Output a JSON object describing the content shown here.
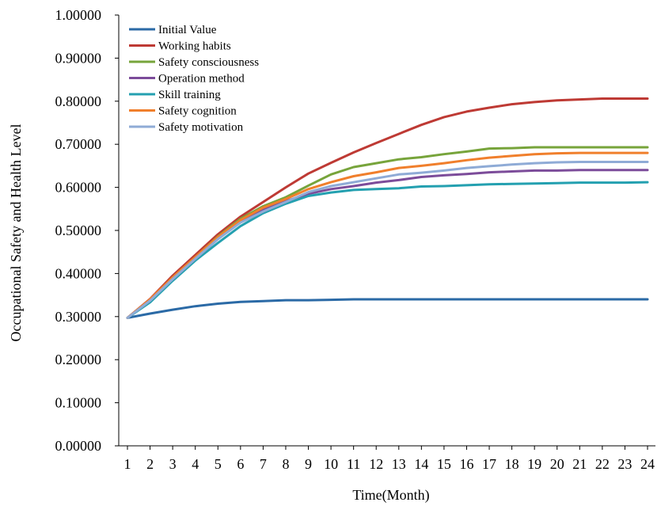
{
  "chart_data": {
    "type": "line",
    "title": "",
    "xlabel": "Time(Month)",
    "ylabel": "Occupational Safety and  Health Level",
    "x": [
      1,
      2,
      3,
      4,
      5,
      6,
      7,
      8,
      9,
      10,
      11,
      12,
      13,
      14,
      15,
      16,
      17,
      18,
      19,
      20,
      21,
      22,
      23,
      24
    ],
    "ylim": [
      0,
      1
    ],
    "yticks": [
      "0.00000",
      "0.10000",
      "0.20000",
      "0.30000",
      "0.40000",
      "0.50000",
      "0.60000",
      "0.70000",
      "0.80000",
      "0.90000",
      "1.00000"
    ],
    "grid": false,
    "legend_position": "top-left",
    "series": [
      {
        "name": "Initial Value",
        "color": "#2b6aa6",
        "values": [
          0.297,
          0.307,
          0.316,
          0.324,
          0.33,
          0.334,
          0.336,
          0.338,
          0.338,
          0.339,
          0.34,
          0.34,
          0.34,
          0.34,
          0.34,
          0.34,
          0.34,
          0.34,
          0.34,
          0.34,
          0.34,
          0.34,
          0.34,
          0.34
        ]
      },
      {
        "name": "Working habits",
        "color": "#be3a34",
        "values": [
          0.297,
          0.341,
          0.395,
          0.443,
          0.491,
          0.532,
          0.566,
          0.6,
          0.632,
          0.657,
          0.681,
          0.703,
          0.724,
          0.745,
          0.763,
          0.776,
          0.785,
          0.793,
          0.798,
          0.802,
          0.804,
          0.806,
          0.806,
          0.806
        ]
      },
      {
        "name": "Safety consciousness",
        "color": "#77a43b",
        "values": [
          0.297,
          0.339,
          0.391,
          0.438,
          0.486,
          0.527,
          0.556,
          0.577,
          0.604,
          0.63,
          0.647,
          0.656,
          0.665,
          0.67,
          0.677,
          0.683,
          0.69,
          0.691,
          0.693,
          0.693,
          0.693,
          0.693,
          0.693,
          0.693
        ]
      },
      {
        "name": "Operation method",
        "color": "#7c4c9a",
        "values": [
          0.297,
          0.338,
          0.387,
          0.434,
          0.48,
          0.519,
          0.548,
          0.568,
          0.585,
          0.596,
          0.603,
          0.611,
          0.617,
          0.624,
          0.628,
          0.631,
          0.635,
          0.637,
          0.639,
          0.639,
          0.64,
          0.64,
          0.64,
          0.64
        ]
      },
      {
        "name": "Skill training",
        "color": "#24a0b0",
        "values": [
          0.297,
          0.333,
          0.383,
          0.43,
          0.471,
          0.51,
          0.54,
          0.562,
          0.58,
          0.588,
          0.594,
          0.596,
          0.598,
          0.602,
          0.603,
          0.605,
          0.607,
          0.608,
          0.609,
          0.61,
          0.611,
          0.611,
          0.611,
          0.612
        ]
      },
      {
        "name": "Safety cognition",
        "color": "#f07f2c",
        "values": [
          0.297,
          0.34,
          0.391,
          0.438,
          0.485,
          0.524,
          0.553,
          0.573,
          0.596,
          0.612,
          0.626,
          0.635,
          0.645,
          0.65,
          0.656,
          0.663,
          0.669,
          0.673,
          0.677,
          0.679,
          0.68,
          0.68,
          0.68,
          0.68
        ]
      },
      {
        "name": "Safety motivation",
        "color": "#8fabd6",
        "values": [
          0.297,
          0.337,
          0.387,
          0.434,
          0.48,
          0.518,
          0.544,
          0.566,
          0.589,
          0.603,
          0.612,
          0.621,
          0.63,
          0.634,
          0.639,
          0.645,
          0.649,
          0.653,
          0.656,
          0.658,
          0.659,
          0.659,
          0.659,
          0.659
        ]
      }
    ]
  }
}
